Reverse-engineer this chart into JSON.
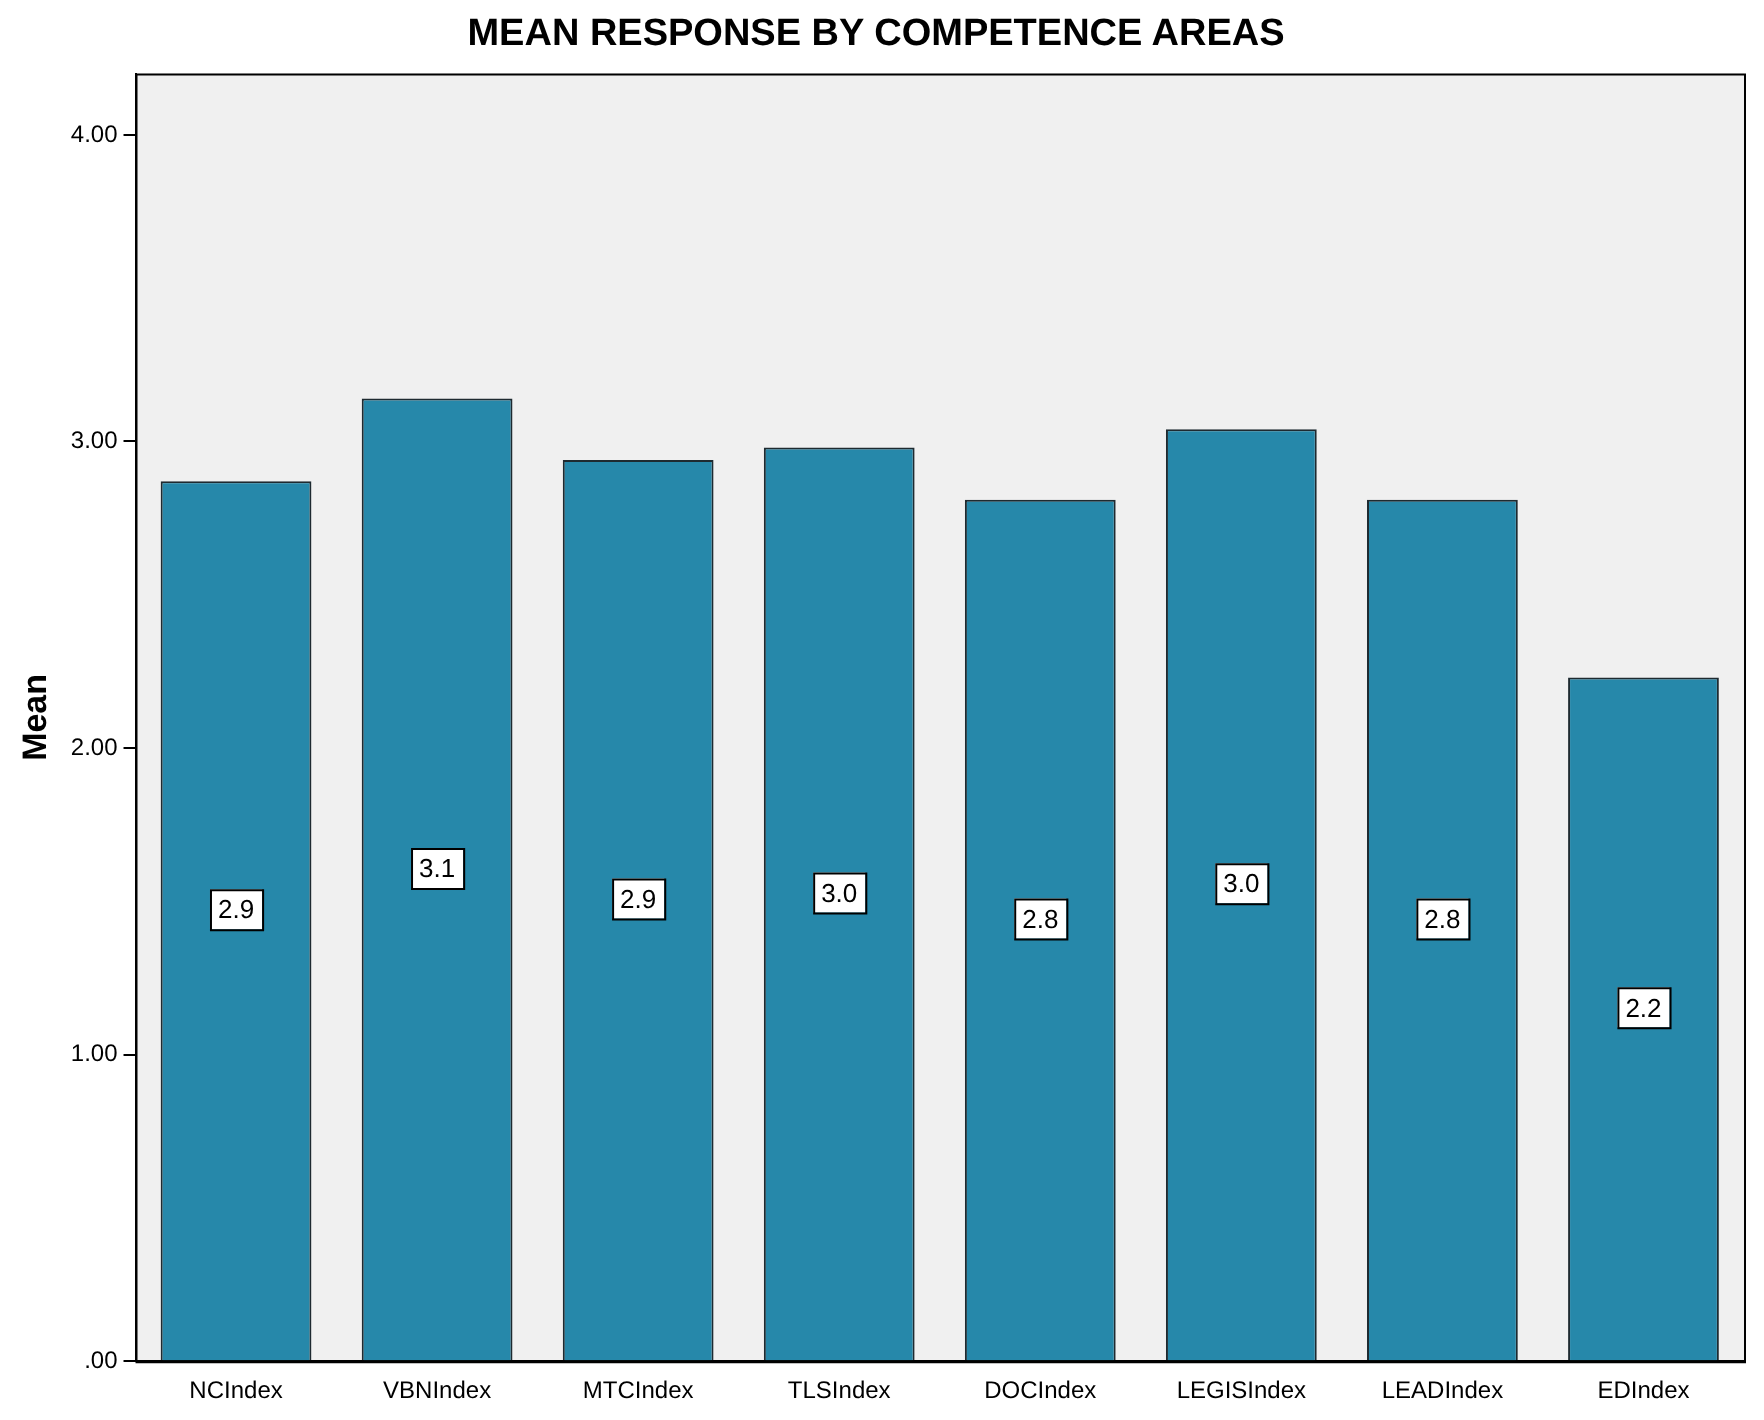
{
  "chart_data": {
    "type": "bar",
    "title": "MEAN RESPONSE BY COMPETENCE AREAS",
    "ylabel": "Mean",
    "categories": [
      "NCIndex",
      "VBNIndex",
      "MTCIndex",
      "TLSIndex",
      "DOCIndex",
      "LEGISIndex",
      "LEADIndex",
      "EDIndex"
    ],
    "values": [
      2.87,
      3.14,
      2.94,
      2.98,
      2.81,
      3.04,
      2.81,
      2.23
    ],
    "value_labels": [
      "2.9",
      "3.1",
      "2.9",
      "3.0",
      "2.8",
      "3.0",
      "2.8",
      "2.2"
    ],
    "color": "#2688aa",
    "ylim": [
      0,
      4.2
    ],
    "yticks": [
      {
        "value": 0,
        "label": ".00"
      },
      {
        "value": 1,
        "label": "1.00"
      },
      {
        "value": 2,
        "label": "2.00"
      },
      {
        "value": 3,
        "label": "3.00"
      },
      {
        "value": 4,
        "label": "4.00"
      }
    ],
    "grid": false,
    "legend": false
  }
}
